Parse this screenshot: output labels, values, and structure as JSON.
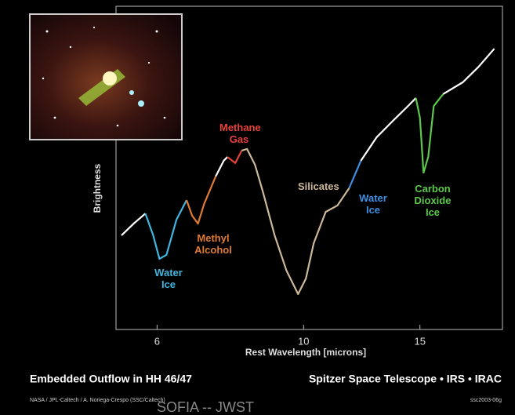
{
  "chart_data": {
    "type": "line",
    "title": "Embedded Outflow in HH 46/47",
    "subtitle": "Spitzer Space Telescope • IRS • IRAC",
    "credit": "NASA / JPL-Caltech / A. Noriega-Crespo (SSC/Caltech)",
    "image_id": "ssc2003-06g",
    "overlay_text": "SOFIA -- JWST",
    "x_label": "Rest Wavelength [microns]",
    "y_label": "Brightness",
    "xscale": "log",
    "xlim": [
      5.2,
      20
    ],
    "xticks": [
      6,
      10,
      15
    ],
    "ylim": [
      0,
      100
    ],
    "series": [
      {
        "color": "#ffffff",
        "x": [
          5.3,
          5.53,
          5.76
        ],
        "values": [
          29.4,
          33.8,
          37.6
        ]
      },
      {
        "name": "Water Ice",
        "color": "#3fb6e0",
        "x": [
          5.76,
          5.92,
          6.05,
          6.2,
          6.42,
          6.65
        ],
        "values": [
          37.6,
          29.4,
          20.6,
          22.1,
          35.3,
          42.6
        ]
      },
      {
        "name": "Methyl Alcohol",
        "color": "#e07a30",
        "x": [
          6.65,
          6.78,
          6.92,
          7.07,
          7.36
        ],
        "values": [
          42.6,
          36.8,
          33.8,
          41.2,
          51.5
        ]
      },
      {
        "color": "#ffffff",
        "x": [
          7.36,
          7.57,
          7.67
        ],
        "values": [
          51.5,
          57.4,
          58.8
        ]
      },
      {
        "name": "Methane Gas",
        "color": "#e8403a",
        "x": [
          7.67,
          7.88,
          8.06
        ],
        "values": [
          58.8,
          56.5,
          61.2
        ]
      },
      {
        "name": "Silicates",
        "color": "#cdb89a",
        "x": [
          8.06,
          8.21,
          8.44,
          8.68,
          9.04,
          9.42,
          9.81,
          10.08,
          10.36,
          10.8,
          11.25,
          11.72
        ],
        "values": [
          61.2,
          61.8,
          55.9,
          45.6,
          29.4,
          16.2,
          7.4,
          13.2,
          26.5,
          38.2,
          40.6,
          47.1
        ]
      },
      {
        "name": "Water Ice",
        "color": "#3f8fe0",
        "x": [
          11.72,
          12.21
        ],
        "values": [
          47.1,
          57.4
        ]
      },
      {
        "color": "#ffffff",
        "x": [
          12.21,
          12.9,
          13.62,
          14.39,
          14.79
        ],
        "values": [
          57.4,
          66.2,
          72.1,
          77.9,
          80.9
        ]
      },
      {
        "name": "Carbon Dioxide Ice",
        "color": "#5cc94a",
        "x": [
          14.79,
          15.0,
          15.19,
          15.44,
          15.74,
          16.27
        ],
        "values": [
          80.9,
          73.5,
          52.9,
          58.8,
          77.9,
          82.4
        ]
      },
      {
        "color": "#ffffff",
        "x": [
          16.27,
          17.42,
          18.4,
          19.44
        ],
        "values": [
          82.4,
          86.8,
          92.6,
          99.4
        ]
      }
    ]
  }
}
